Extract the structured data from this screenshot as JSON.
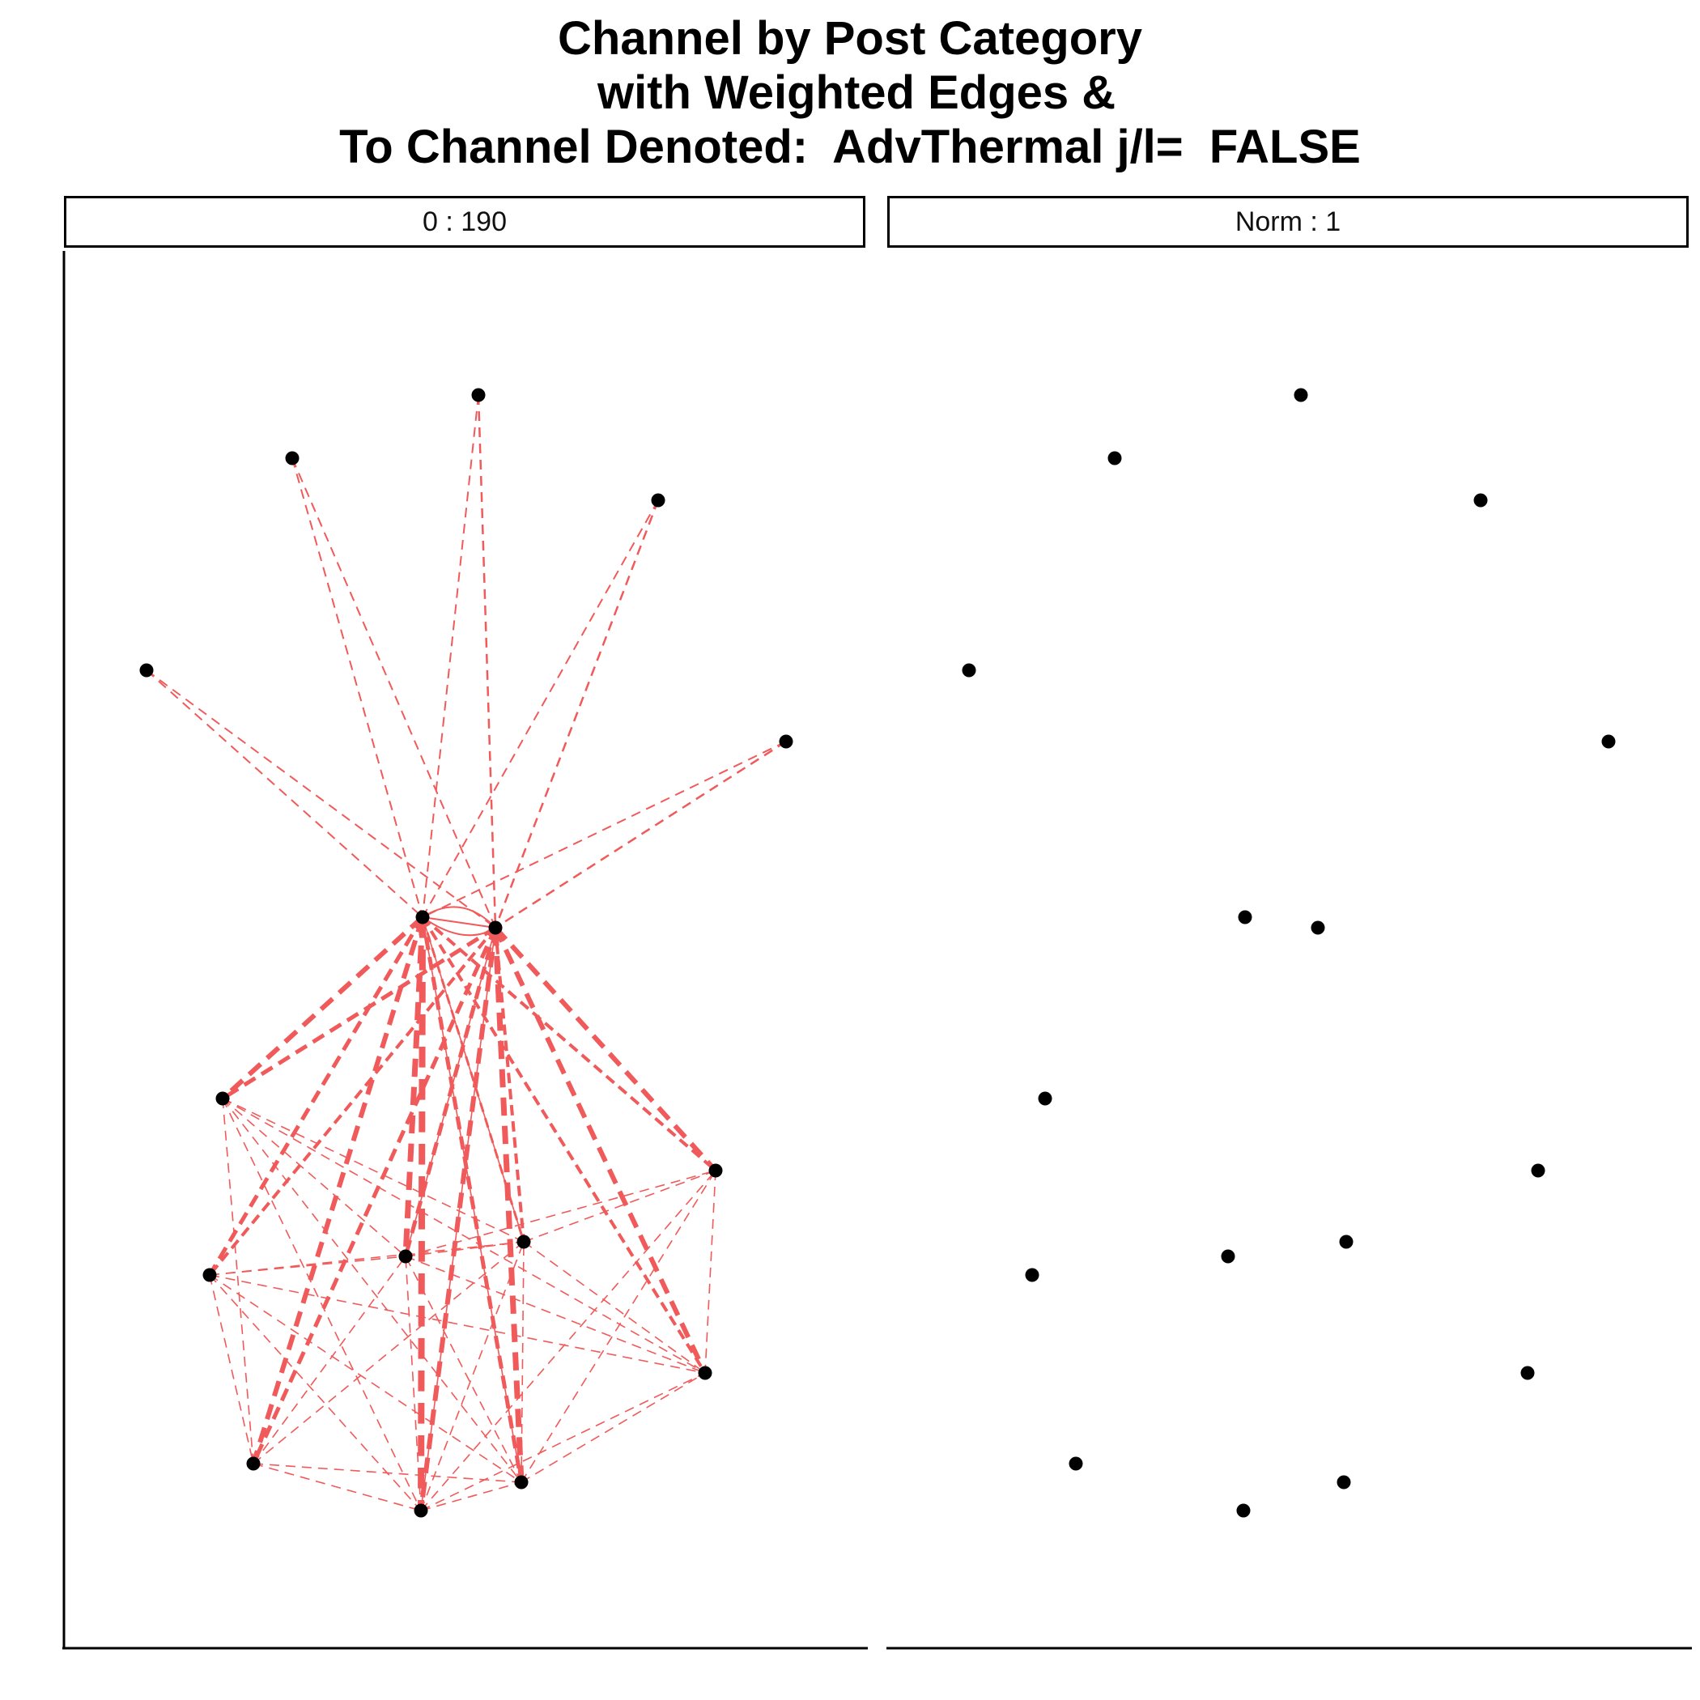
{
  "title": {
    "line1": "Channel by Post Category",
    "line2": " with Weighted Edges &",
    "line3": "To Channel Denoted:  AdvThermal j/l=  FALSE"
  },
  "panels": [
    {
      "label": "0 : 190"
    },
    {
      "label": "Norm : 1"
    }
  ],
  "colors": {
    "edge": "#F05A5A",
    "node": "#000000",
    "frame": "#000000"
  }
}
